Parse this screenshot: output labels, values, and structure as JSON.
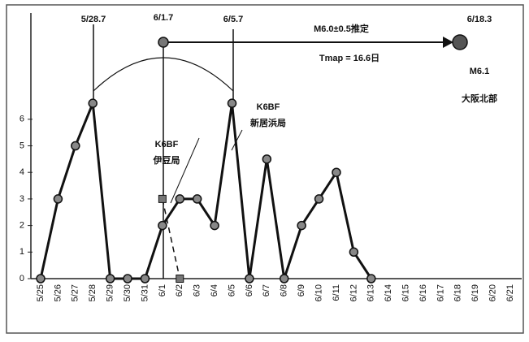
{
  "chart_data": {
    "type": "line",
    "categories": [
      "5/25",
      "5/26",
      "5/27",
      "5/28",
      "5/29",
      "5/30",
      "5/31",
      "6/1",
      "6/2",
      "6/3",
      "6/4",
      "6/5",
      "6/6",
      "6/7",
      "6/8",
      "6/9",
      "6/10",
      "6/11",
      "6/12",
      "6/13",
      "6/14",
      "6/15",
      "6/16",
      "6/17",
      "6/18",
      "6/19",
      "6/20",
      "6/21"
    ],
    "series": [
      {
        "color": "#111111",
        "line_style": "solid",
        "marker": "circle",
        "values": [
          0,
          3,
          5,
          6.6,
          0,
          0,
          0,
          2,
          3,
          3,
          2,
          6.6,
          0,
          4.5,
          0,
          2,
          3,
          4,
          1,
          0,
          null,
          null,
          null,
          null,
          null,
          null,
          null,
          null
        ]
      },
      {
        "color": "#111111",
        "line_style": "dashed",
        "marker": "square",
        "values": [
          null,
          null,
          null,
          null,
          null,
          null,
          null,
          3,
          0,
          null,
          null,
          null,
          null,
          null,
          null,
          null,
          null,
          null,
          null,
          null,
          null,
          null,
          null,
          null,
          null,
          null,
          null,
          null
        ]
      }
    ],
    "ylim": [
      0,
      10
    ],
    "yticks": [
      0,
      1,
      2,
      3,
      4,
      5,
      6
    ],
    "grid": false,
    "annotations": [
      "5/28.7",
      "6/1.7",
      "6/5.7",
      "M6.0±0.5推定",
      "6/18.3",
      "Tmap = 16.6日",
      "M6.1",
      "大阪北部",
      "K6BF",
      "伊豆局",
      "K6BF",
      "新居浜局"
    ]
  }
}
